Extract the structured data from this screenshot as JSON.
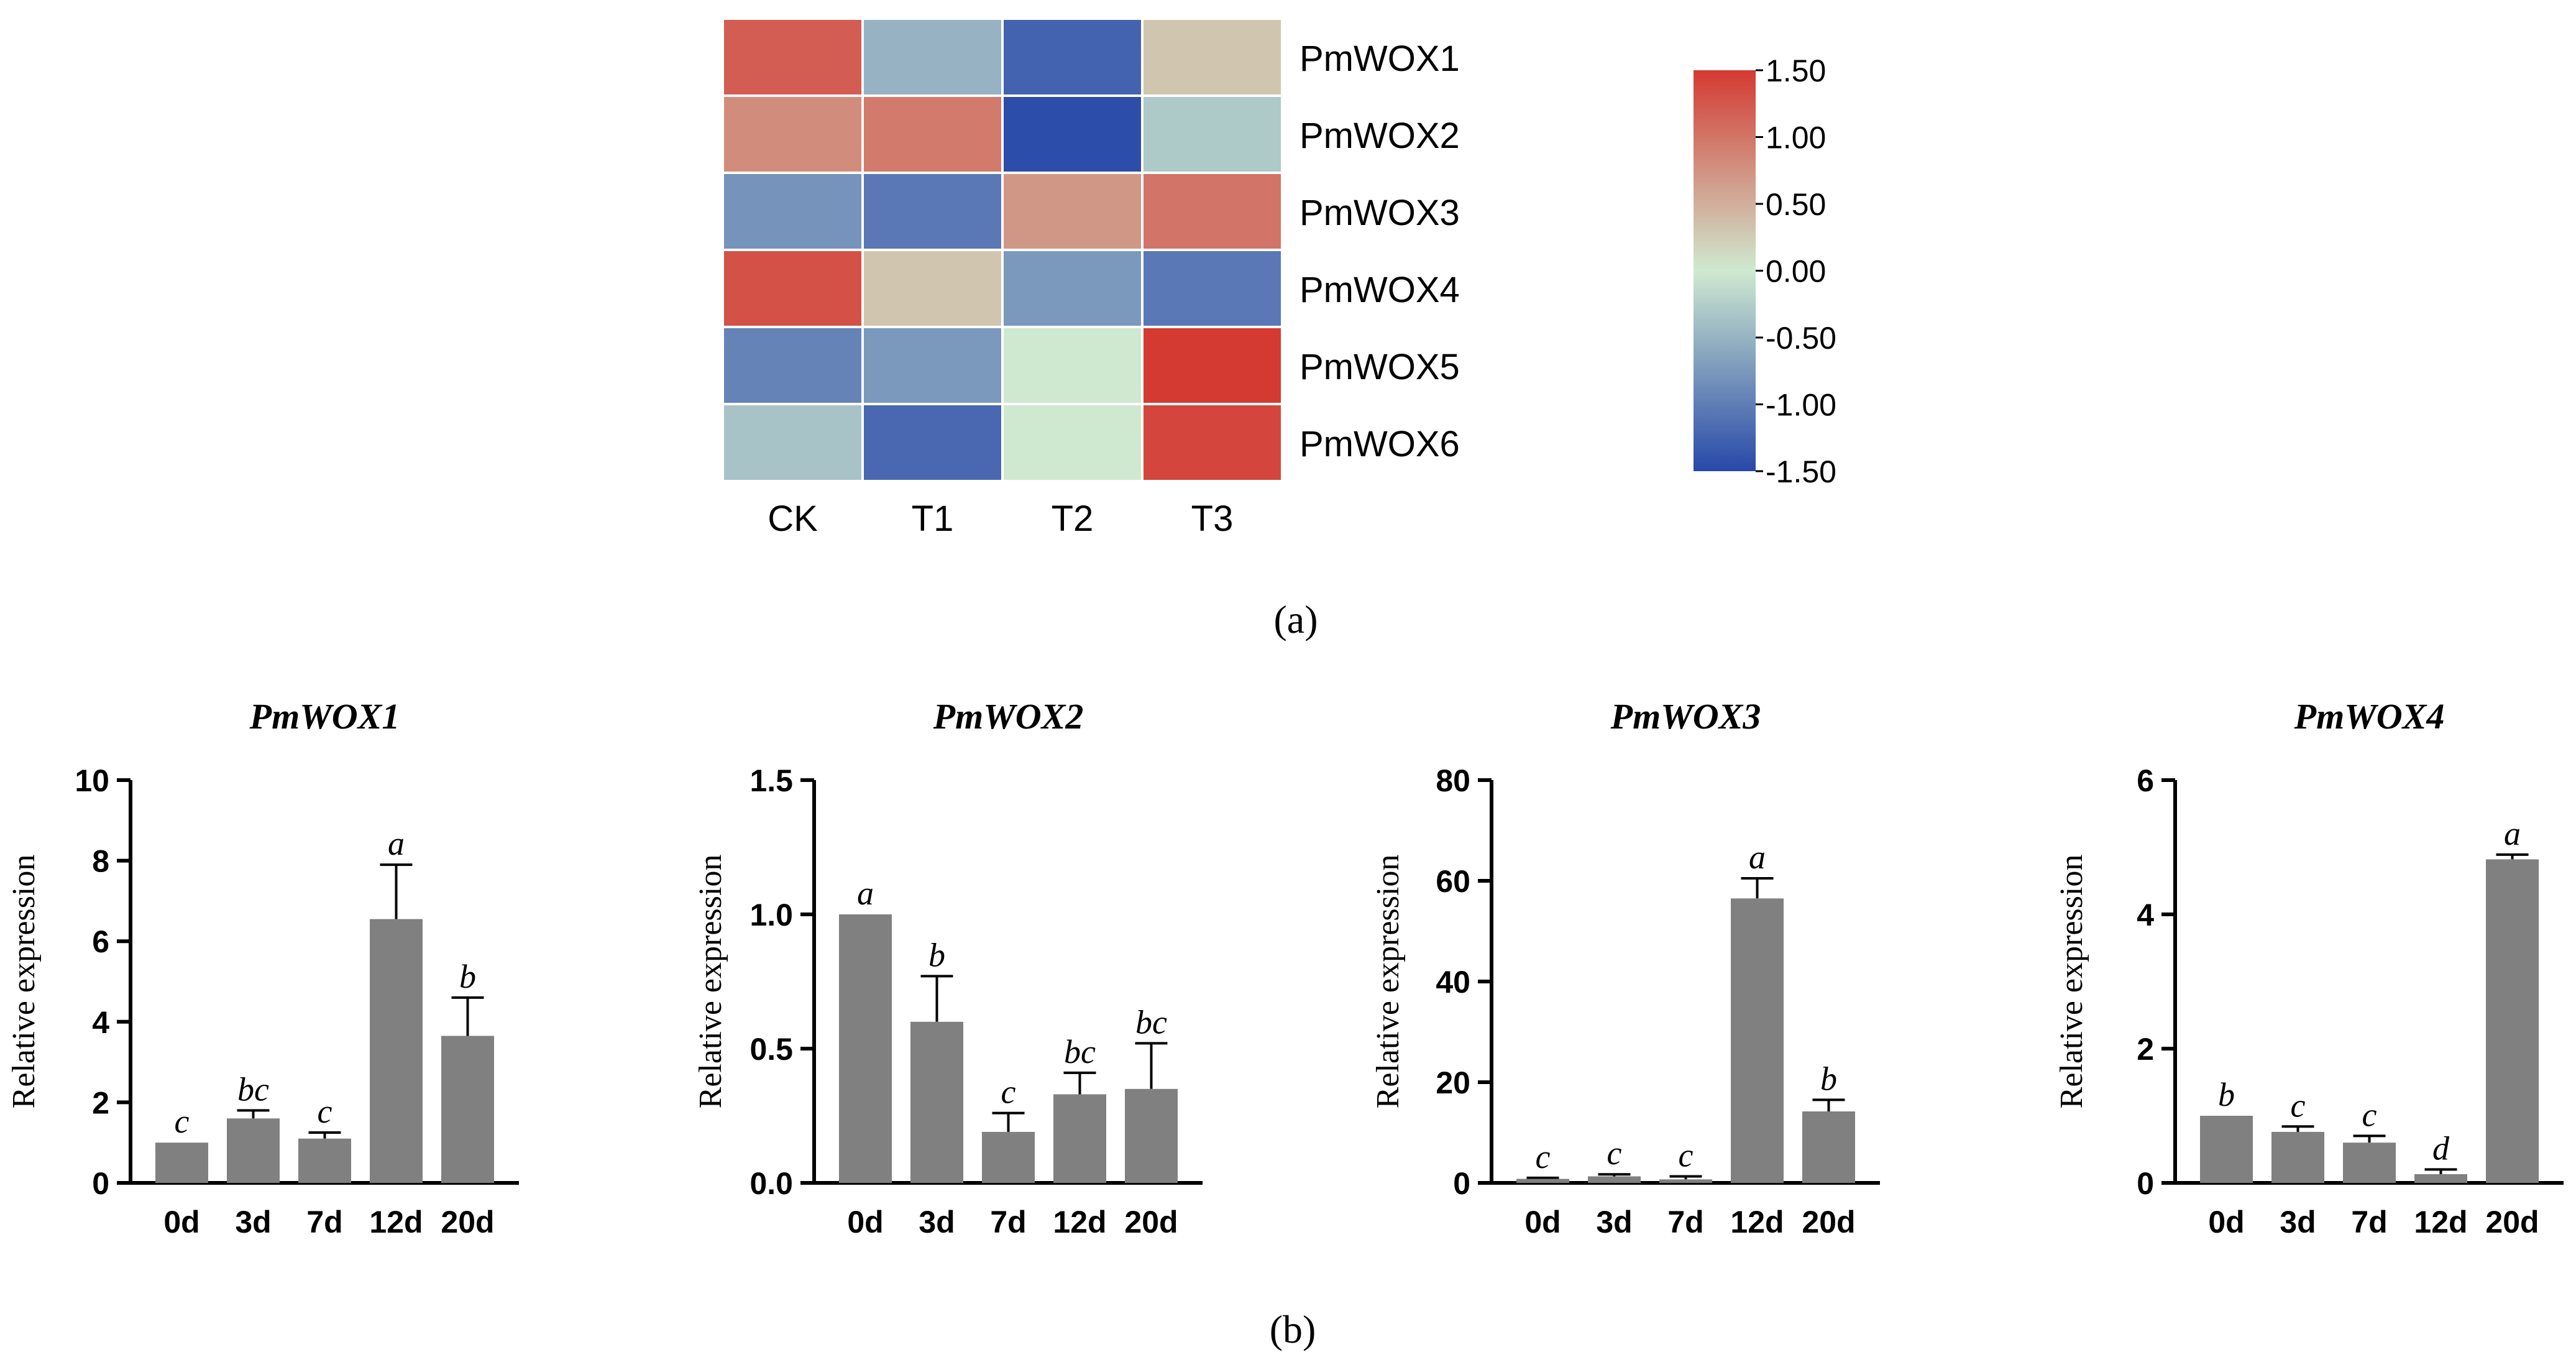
{
  "heatmap": {
    "columns": [
      "CK",
      "T1",
      "T2",
      "T3"
    ],
    "rows": [
      "PmWOX1",
      "PmWOX2",
      "PmWOX3",
      "PmWOX4",
      "PmWOX5",
      "PmWOX6"
    ],
    "values": [
      [
        1.2,
        -0.5,
        -1.25,
        0.3
      ],
      [
        0.8,
        0.95,
        -1.45,
        -0.3
      ],
      [
        -0.8,
        -1.05,
        0.7,
        1.0
      ],
      [
        1.3,
        0.3,
        -0.75,
        -1.05
      ],
      [
        -0.95,
        -0.75,
        0.0,
        1.5
      ],
      [
        -0.35,
        -1.2,
        0.0,
        1.4
      ]
    ],
    "scale": {
      "min": -1.5,
      "max": 1.5,
      "ticks": [
        "1.50",
        "1.00",
        "0.50",
        "0.00",
        "-0.50",
        "-1.00",
        "-1.50"
      ],
      "colors": {
        "low": "#2748a9",
        "mid": "#cfe9d0",
        "high": "#d43a32"
      }
    }
  },
  "panel_labels": {
    "a": "(a)",
    "b": "(b)"
  },
  "bar_color": "#808080",
  "chart_data": [
    {
      "type": "bar",
      "title": "PmWOX1",
      "ylabel": "Relative expression",
      "xlabel": "",
      "categories": [
        "0d",
        "3d",
        "7d",
        "12d",
        "20d"
      ],
      "values": [
        1.0,
        1.6,
        1.1,
        6.55,
        3.65
      ],
      "errors": [
        0.0,
        0.2,
        0.15,
        1.35,
        0.95
      ],
      "letters": [
        "c",
        "bc",
        "c",
        "a",
        "b"
      ],
      "ylim": [
        0,
        10
      ],
      "yticks": [
        "0",
        "2",
        "4",
        "6",
        "8",
        "10"
      ]
    },
    {
      "type": "bar",
      "title": "PmWOX2",
      "ylabel": "Relative expression",
      "xlabel": "",
      "categories": [
        "0d",
        "3d",
        "7d",
        "12d",
        "20d"
      ],
      "values": [
        1.0,
        0.6,
        0.19,
        0.33,
        0.35
      ],
      "errors": [
        0.0,
        0.17,
        0.07,
        0.08,
        0.17
      ],
      "letters": [
        "a",
        "b",
        "c",
        "bc",
        "bc"
      ],
      "ylim": [
        0,
        1.5
      ],
      "yticks": [
        "0.0",
        "0.5",
        "1.0",
        "1.5"
      ]
    },
    {
      "type": "bar",
      "title": "PmWOX3",
      "ylabel": "Relative expression",
      "xlabel": "",
      "categories": [
        "0d",
        "3d",
        "7d",
        "12d",
        "20d"
      ],
      "values": [
        0.8,
        1.3,
        0.7,
        56.5,
        14.2
      ],
      "errors": [
        0.2,
        0.4,
        0.6,
        4.0,
        2.3
      ],
      "letters": [
        "c",
        "c",
        "c",
        "a",
        "b"
      ],
      "ylim": [
        0,
        80
      ],
      "yticks": [
        "0",
        "20",
        "40",
        "60",
        "80"
      ]
    },
    {
      "type": "bar",
      "title": "PmWOX4",
      "ylabel": "Relative expression",
      "xlabel": "",
      "categories": [
        "0d",
        "3d",
        "7d",
        "12d",
        "20d"
      ],
      "values": [
        1.0,
        0.76,
        0.6,
        0.13,
        4.82
      ],
      "errors": [
        0.0,
        0.08,
        0.1,
        0.07,
        0.07
      ],
      "letters": [
        "b",
        "c",
        "c",
        "d",
        "a"
      ],
      "ylim": [
        0,
        6
      ],
      "yticks": [
        "0",
        "2",
        "4",
        "6"
      ]
    }
  ]
}
